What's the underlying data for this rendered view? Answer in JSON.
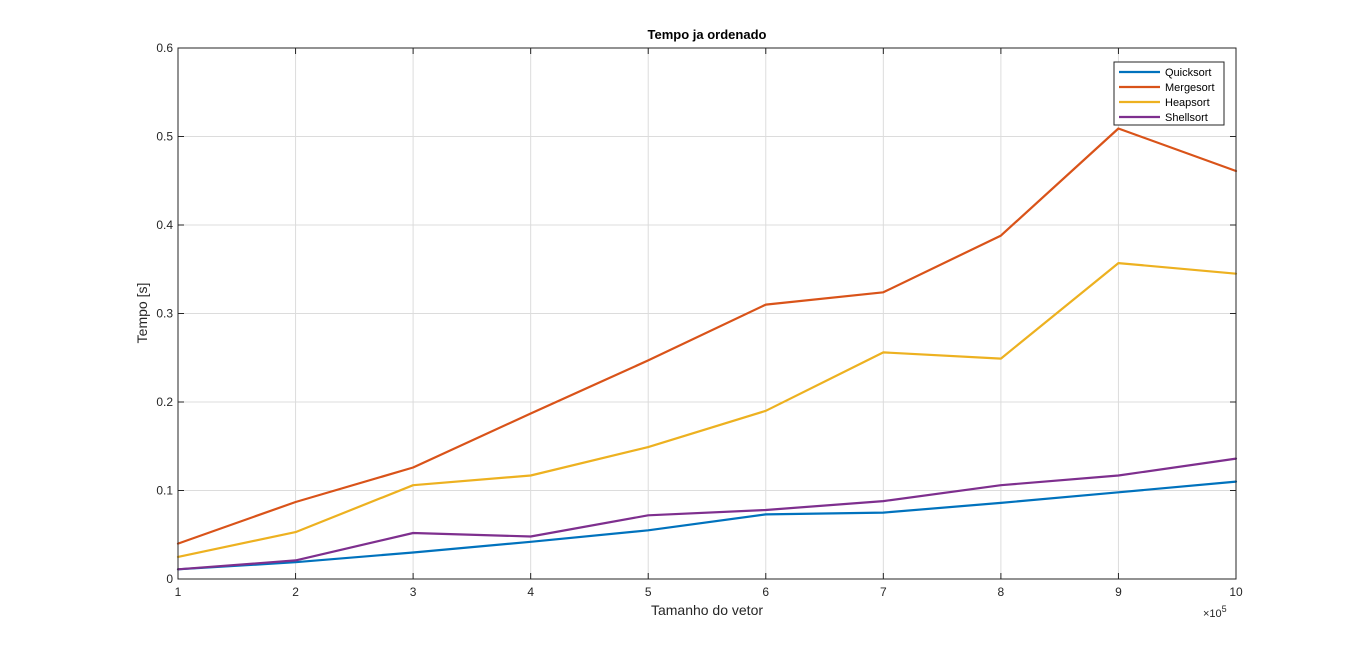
{
  "chart_data": {
    "type": "line",
    "title": "Tempo ja ordenado",
    "xlabel": "Tamanho do vetor",
    "ylabel": "Tempo [s]",
    "x_multiplier_label": "×10",
    "x_multiplier_exp": "5",
    "x": [
      1,
      2,
      3,
      4,
      5,
      6,
      7,
      8,
      9,
      10
    ],
    "xlim": [
      1,
      10
    ],
    "ylim": [
      0,
      0.6
    ],
    "xticks": [
      "1",
      "2",
      "3",
      "4",
      "5",
      "6",
      "7",
      "8",
      "9",
      "10"
    ],
    "yticks": [
      "0",
      "0.1",
      "0.2",
      "0.3",
      "0.4",
      "0.5",
      "0.6"
    ],
    "grid": true,
    "legend_position": "top-right",
    "series": [
      {
        "name": "Quicksort",
        "color": "#0072BD",
        "values": [
          0.011,
          0.019,
          0.03,
          0.042,
          0.055,
          0.073,
          0.075,
          0.086,
          0.098,
          0.11
        ]
      },
      {
        "name": "Mergesort",
        "color": "#D95319",
        "values": [
          0.04,
          0.087,
          0.126,
          0.187,
          0.247,
          0.31,
          0.324,
          0.388,
          0.509,
          0.461
        ]
      },
      {
        "name": "Heapsort",
        "color": "#EDB120",
        "values": [
          0.025,
          0.053,
          0.106,
          0.117,
          0.149,
          0.19,
          0.256,
          0.249,
          0.357,
          0.345
        ]
      },
      {
        "name": "Shellsort",
        "color": "#7E2F8E",
        "values": [
          0.011,
          0.021,
          0.052,
          0.048,
          0.072,
          0.078,
          0.088,
          0.106,
          0.117,
          0.136
        ]
      }
    ]
  }
}
